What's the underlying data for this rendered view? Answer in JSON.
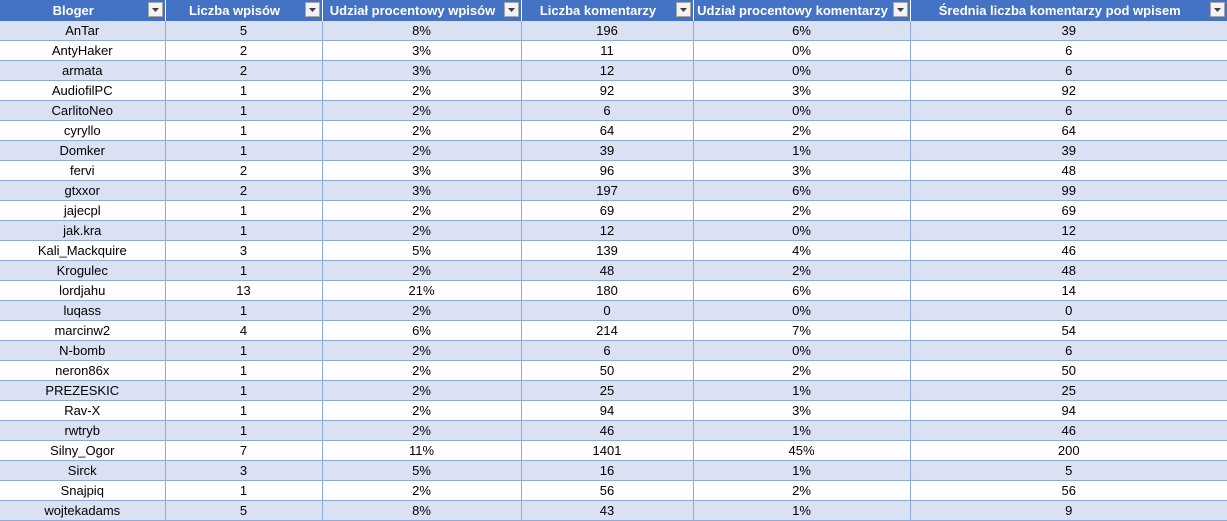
{
  "headers": [
    "Bloger",
    "Liczba wpisów",
    "Udział procentowy wpisów",
    "Liczba komentarzy",
    "Udział procentowy komentarzy",
    "Średnia liczba komentarzy pod wpisem"
  ],
  "filter_icon": "dropdown-arrow-icon",
  "colors": {
    "header_bg": "#4472c4",
    "band_bg": "#d9e1f2",
    "border": "#8ea9db"
  },
  "rows": [
    [
      "AnTar",
      "5",
      "8%",
      "196",
      "6%",
      "39"
    ],
    [
      "AntyHaker",
      "2",
      "3%",
      "11",
      "0%",
      "6"
    ],
    [
      "armata",
      "2",
      "3%",
      "12",
      "0%",
      "6"
    ],
    [
      "AudiofilPC",
      "1",
      "2%",
      "92",
      "3%",
      "92"
    ],
    [
      "CarlitoNeo",
      "1",
      "2%",
      "6",
      "0%",
      "6"
    ],
    [
      "cyryllo",
      "1",
      "2%",
      "64",
      "2%",
      "64"
    ],
    [
      "Domker",
      "1",
      "2%",
      "39",
      "1%",
      "39"
    ],
    [
      "fervi",
      "2",
      "3%",
      "96",
      "3%",
      "48"
    ],
    [
      "gtxxor",
      "2",
      "3%",
      "197",
      "6%",
      "99"
    ],
    [
      "jajecpl",
      "1",
      "2%",
      "69",
      "2%",
      "69"
    ],
    [
      "jak.kra",
      "1",
      "2%",
      "12",
      "0%",
      "12"
    ],
    [
      "Kali_Mackquire",
      "3",
      "5%",
      "139",
      "4%",
      "46"
    ],
    [
      "Krogulec",
      "1",
      "2%",
      "48",
      "2%",
      "48"
    ],
    [
      "lordjahu",
      "13",
      "21%",
      "180",
      "6%",
      "14"
    ],
    [
      "luqass",
      "1",
      "2%",
      "0",
      "0%",
      "0"
    ],
    [
      "marcinw2",
      "4",
      "6%",
      "214",
      "7%",
      "54"
    ],
    [
      "N-bomb",
      "1",
      "2%",
      "6",
      "0%",
      "6"
    ],
    [
      "neron86x",
      "1",
      "2%",
      "50",
      "2%",
      "50"
    ],
    [
      "PREZESKIC",
      "1",
      "2%",
      "25",
      "1%",
      "25"
    ],
    [
      "Rav-X",
      "1",
      "2%",
      "94",
      "3%",
      "94"
    ],
    [
      "rwtryb",
      "1",
      "2%",
      "46",
      "1%",
      "46"
    ],
    [
      "Silny_Ogor",
      "7",
      "11%",
      "1401",
      "45%",
      "200"
    ],
    [
      "Sirck",
      "3",
      "5%",
      "16",
      "1%",
      "5"
    ],
    [
      "Snajpiq",
      "1",
      "2%",
      "56",
      "2%",
      "56"
    ],
    [
      "wojtekadams",
      "5",
      "8%",
      "43",
      "1%",
      "9"
    ]
  ]
}
